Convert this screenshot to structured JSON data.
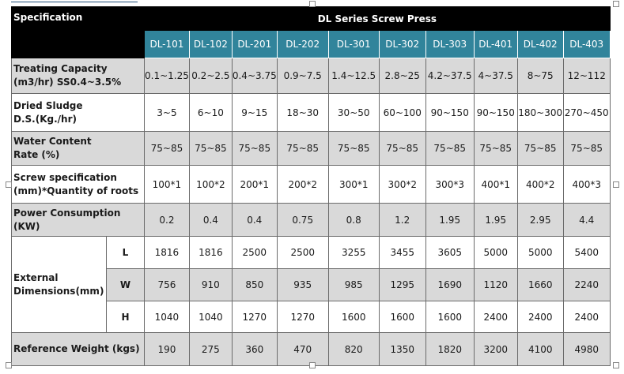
{
  "title": "DL Series Screw Press",
  "spec_label": "Specification",
  "models": [
    "DL-101",
    "DL-102",
    "DL-201",
    "DL-202",
    "DL-301",
    "DL-302",
    "DL-303",
    "DL-401",
    "DL-402",
    "DL-403"
  ],
  "rows": {
    "treating": {
      "label1": "Treating Capacity",
      "label2": "(m3/hr) SS0.4~3.5%",
      "values": [
        "0.1~1.25",
        "0.2~2.5",
        "0.4~3.75",
        "0.9~7.5",
        "1.4~12.5",
        "2.8~25",
        "4.2~37.5",
        "4~37.5",
        "8~75",
        "12~112"
      ]
    },
    "dried": {
      "label1": "Dried Sludge",
      "label2": "D.S.(Kg./hr)",
      "values": [
        "3~5",
        "6~10",
        "9~15",
        "18~30",
        "30~50",
        "60~100",
        "90~150",
        "90~150",
        "180~300",
        "270~450"
      ]
    },
    "water": {
      "label1": "Water Content",
      "label2": "Rate (%)",
      "values": [
        "75~85",
        "75~85",
        "75~85",
        "75~85",
        "75~85",
        "75~85",
        "75~85",
        "75~85",
        "75~85",
        "75~85"
      ]
    },
    "screw": {
      "label1": "Screw specification",
      "label2": "(mm)*Quantity of roots",
      "values": [
        "100*1",
        "100*2",
        "200*1",
        "200*2",
        "300*1",
        "300*2",
        "300*3",
        "400*1",
        "400*2",
        "400*3"
      ]
    },
    "power": {
      "label": "Power Consumption (KW)",
      "values": [
        "0.2",
        "0.4",
        "0.4",
        "0.75",
        "0.8",
        "1.2",
        "1.95",
        "1.95",
        "2.95",
        "4.4"
      ]
    },
    "dims": {
      "label1": "External",
      "label2": "Dimensions(mm)",
      "L": {
        "label": "L",
        "values": [
          "1816",
          "1816",
          "2500",
          "2500",
          "3255",
          "3455",
          "3605",
          "5000",
          "5000",
          "5400"
        ]
      },
      "W": {
        "label": "W",
        "values": [
          "756",
          "910",
          "850",
          "935",
          "985",
          "1295",
          "1690",
          "1120",
          "1660",
          "2240"
        ]
      },
      "H": {
        "label": "H",
        "values": [
          "1040",
          "1040",
          "1270",
          "1270",
          "1600",
          "1600",
          "1600",
          "2400",
          "2400",
          "2400"
        ]
      }
    },
    "weight": {
      "label": "Reference Weight (kgs)",
      "values": [
        "190",
        "275",
        "360",
        "470",
        "820",
        "1350",
        "1820",
        "3200",
        "4100",
        "4980"
      ]
    }
  }
}
